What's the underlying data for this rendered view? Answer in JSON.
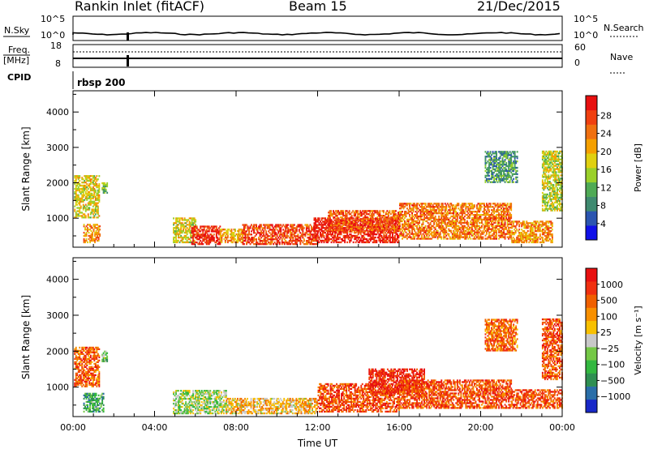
{
  "header": {
    "station": "Rankin Inlet (fitACF)",
    "beam": "Beam 15",
    "date": "21/Dec/2015"
  },
  "summary": {
    "nsky_label": "N.Sky",
    "nsearch_label": "N.Search",
    "freq_label_1": "Freq.",
    "freq_label_2": "[MHz]",
    "nave_label": "Nave",
    "cpid_label": "CPID",
    "cpid_value": "rbsp 200",
    "nsky_ticks": [
      "10^5",
      "10^0"
    ],
    "nsearch_ticks": [
      "10^5",
      "10^0"
    ],
    "freq_ticks": [
      "18",
      "8"
    ],
    "nave_ticks": [
      "60",
      "0"
    ]
  },
  "chart_data": [
    {
      "type": "heatmap",
      "name": "power",
      "ylabel": "Slant Range [km]",
      "xlabel": "",
      "x_ticks": [
        "00:00",
        "04:00",
        "08:00",
        "12:00",
        "16:00",
        "20:00",
        "00:00"
      ],
      "xlim_hours": [
        0,
        24
      ],
      "y_ticks": [
        1000,
        2000,
        3000,
        4000
      ],
      "ylim": [
        180,
        4600
      ],
      "colorbar": {
        "label": "Power [dB]",
        "ticks": [
          "4",
          "8",
          "12",
          "16",
          "20",
          "24",
          "28"
        ],
        "colors": [
          "#1010e8",
          "#2b55b0",
          "#3f8a70",
          "#4faa55",
          "#9ad02a",
          "#e0d010",
          "#f5a000",
          "#f07010",
          "#f04010",
          "#e81010"
        ]
      },
      "regions": [
        {
          "t": [
            0.05,
            1.3
          ],
          "r": [
            1000,
            2200
          ],
          "level": 0.55
        },
        {
          "t": [
            1.4,
            1.7
          ],
          "r": [
            1700,
            2000
          ],
          "level": 0.4
        },
        {
          "t": [
            0.5,
            1.3
          ],
          "r": [
            300,
            800
          ],
          "level": 0.7
        },
        {
          "t": [
            4.9,
            6.0
          ],
          "r": [
            300,
            1000
          ],
          "level": 0.55
        },
        {
          "t": [
            5.8,
            7.2
          ],
          "r": [
            250,
            750
          ],
          "level": 0.9
        },
        {
          "t": [
            7.2,
            8.3
          ],
          "r": [
            300,
            700
          ],
          "level": 0.65
        },
        {
          "t": [
            8.3,
            12.0
          ],
          "r": [
            250,
            800
          ],
          "level": 0.85
        },
        {
          "t": [
            11.8,
            16.0
          ],
          "r": [
            300,
            1000
          ],
          "level": 0.95
        },
        {
          "t": [
            12.5,
            16.0
          ],
          "r": [
            600,
            1200
          ],
          "level": 0.8
        },
        {
          "t": [
            16.0,
            21.5
          ],
          "r": [
            400,
            1400
          ],
          "level": 0.75
        },
        {
          "t": [
            21.5,
            23.5
          ],
          "r": [
            300,
            900
          ],
          "level": 0.7
        },
        {
          "t": [
            20.2,
            21.8
          ],
          "r": [
            2000,
            2900
          ],
          "level": 0.3
        },
        {
          "t": [
            23.0,
            24.0
          ],
          "r": [
            1200,
            2900
          ],
          "level": 0.5
        }
      ]
    },
    {
      "type": "heatmap",
      "name": "velocity",
      "ylabel": "Slant Range [km]",
      "xlabel": "Time UT",
      "x_ticks": [
        "00:00",
        "04:00",
        "08:00",
        "12:00",
        "16:00",
        "20:00",
        "00:00"
      ],
      "xlim_hours": [
        0,
        24
      ],
      "y_ticks": [
        1000,
        2000,
        3000,
        4000
      ],
      "ylim": [
        180,
        4600
      ],
      "colorbar": {
        "label": "Velocity [m s⁻¹]",
        "ticks": [
          "1000",
          "500",
          "100",
          "25",
          "−25",
          "−100",
          "−500",
          "−1000"
        ],
        "colors": [
          "#1828c8",
          "#2a6ea8",
          "#2f8f52",
          "#33b840",
          "#74c846",
          "#c8c8c8",
          "#f8c000",
          "#f89000",
          "#f06000",
          "#f03010",
          "#e81010"
        ]
      },
      "regions": [
        {
          "t": [
            0.05,
            1.3
          ],
          "r": [
            1000,
            2100
          ],
          "level": 0.78
        },
        {
          "t": [
            1.4,
            1.7
          ],
          "r": [
            1700,
            2000
          ],
          "level": 0.4
        },
        {
          "t": [
            0.5,
            1.5
          ],
          "r": [
            300,
            800
          ],
          "level": 0.3
        },
        {
          "t": [
            4.9,
            7.5
          ],
          "r": [
            250,
            900
          ],
          "level": 0.45
        },
        {
          "t": [
            7.5,
            12.0
          ],
          "r": [
            250,
            700
          ],
          "level": 0.6
        },
        {
          "t": [
            12.0,
            16.0
          ],
          "r": [
            300,
            1100
          ],
          "level": 0.82
        },
        {
          "t": [
            14.5,
            17.2
          ],
          "r": [
            800,
            1500
          ],
          "level": 0.92
        },
        {
          "t": [
            16.0,
            21.5
          ],
          "r": [
            400,
            1200
          ],
          "level": 0.82
        },
        {
          "t": [
            21.5,
            24.0
          ],
          "r": [
            400,
            900
          ],
          "level": 0.82
        },
        {
          "t": [
            20.2,
            21.8
          ],
          "r": [
            2000,
            2900
          ],
          "level": 0.75
        },
        {
          "t": [
            23.0,
            24.0
          ],
          "r": [
            1200,
            2900
          ],
          "level": 0.8
        }
      ]
    }
  ]
}
